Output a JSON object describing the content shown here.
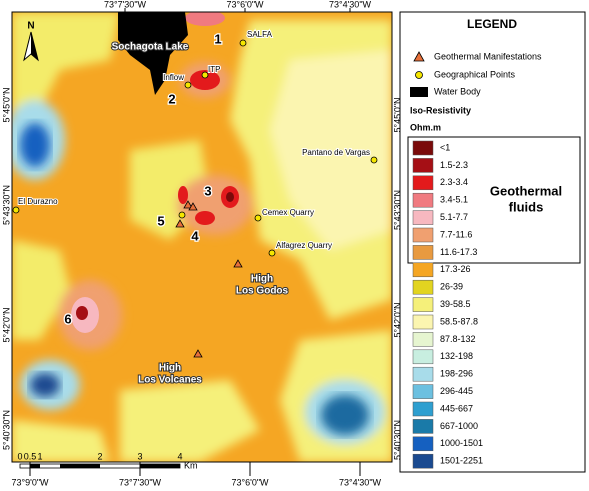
{
  "map": {
    "top_axis": [
      "73°7'30\"W",
      "73°6'0\"W",
      "73°4'30\"W"
    ],
    "bottom_axis": [
      "73°9'0\"W",
      "73°7'30\"W",
      "73°6'0\"W",
      "73°4'30\"W"
    ],
    "left_axis": [
      "5°45'0\"N",
      "5°43'30\"N",
      "5°42'0\"N",
      "5°40'30\"N"
    ],
    "right_axis": [
      "5°45'0\"N",
      "5°43'30\"N",
      "5°42'0\"N",
      "5°40'30\"N"
    ],
    "north": "N",
    "lake": "Sochagota Lake",
    "places": [
      "SALFA",
      "ITP",
      "Inflow",
      "Pantano de Vargas",
      "El Durazno",
      "Cemex Quarry",
      "Alfagrez Quarry"
    ],
    "anomalies": [
      "1",
      "2",
      "3",
      "4",
      "5",
      "6"
    ],
    "zones": [
      [
        "High",
        "Los Godos"
      ],
      [
        "High",
        "Los Volcanes"
      ]
    ],
    "scale": {
      "ticks": [
        "0",
        "0.5",
        "1",
        "2",
        "3",
        "4"
      ],
      "unit": "Km"
    }
  },
  "legend": {
    "title": "LEGEND",
    "symbols": [
      "Geothermal Manifestations",
      "Geographical Points",
      "Water Body"
    ],
    "heading": "Iso-Resistivity",
    "unit": "Ohm.m",
    "group": [
      "Geothermal",
      "fluids"
    ],
    "classes": [
      {
        "label": "<1",
        "color": "#7a0a0a"
      },
      {
        "label": "1.5-2.3",
        "color": "#a50f15"
      },
      {
        "label": "2.3-3.4",
        "color": "#e31a1c"
      },
      {
        "label": "3.4-5.1",
        "color": "#f07a80"
      },
      {
        "label": "5.1-7.7",
        "color": "#f7b8c0"
      },
      {
        "label": "7.7-11.6",
        "color": "#f0a070"
      },
      {
        "label": "11.6-17.3",
        "color": "#e89a40"
      },
      {
        "label": "17.3-26",
        "color": "#f5a623"
      },
      {
        "label": "26-39",
        "color": "#e2d420"
      },
      {
        "label": "39-58.5",
        "color": "#f5f07a"
      },
      {
        "label": "58.5-87.8",
        "color": "#fbf5b0"
      },
      {
        "label": "87.8-132",
        "color": "#e6f5d0"
      },
      {
        "label": "132-198",
        "color": "#c8eee0"
      },
      {
        "label": "198-296",
        "color": "#a8dcea"
      },
      {
        "label": "296-445",
        "color": "#6cc0e0"
      },
      {
        "label": "445-667",
        "color": "#2e9fd0"
      },
      {
        "label": "667-1000",
        "color": "#1a7aa8"
      },
      {
        "label": "1000-1501",
        "color": "#1560c0"
      },
      {
        "label": "1501-2251",
        "color": "#1a4a90"
      }
    ]
  }
}
